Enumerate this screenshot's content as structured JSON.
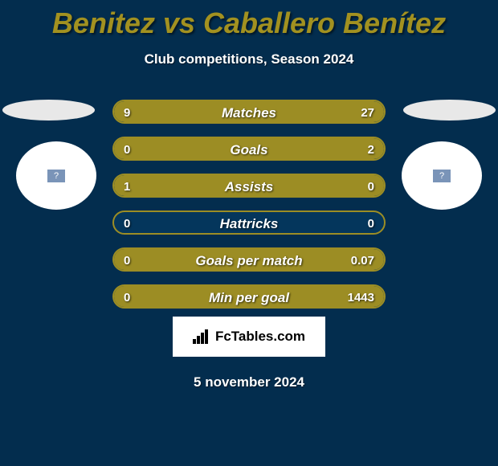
{
  "colors": {
    "bg": "#032d4e",
    "title": "#a29120",
    "text": "#ffffff",
    "ellipse": "#e8e8e8",
    "avatar_bg": "#ffffff",
    "avatar_inner_bg": "#7a94b8",
    "avatar_inner_text": "#ffffff",
    "bar_track": "#04365c",
    "bar_border": "#9c8d24",
    "bar_fill": "#9c8d24",
    "footer_bg": "#ffffff",
    "footer_text": "#000000"
  },
  "title": {
    "text": "Benitez vs Caballero Benítez",
    "fontsize": 36
  },
  "subtitle": "Club competitions, Season 2024",
  "avatar_glyph": "?",
  "stats": [
    {
      "label": "Matches",
      "left_val": "9",
      "right_val": "27",
      "left_pct": 25,
      "right_pct": 75
    },
    {
      "label": "Goals",
      "left_val": "0",
      "right_val": "2",
      "left_pct": 0,
      "right_pct": 100
    },
    {
      "label": "Assists",
      "left_val": "1",
      "right_val": "0",
      "left_pct": 100,
      "right_pct": 0
    },
    {
      "label": "Hattricks",
      "left_val": "0",
      "right_val": "0",
      "left_pct": 0,
      "right_pct": 0
    },
    {
      "label": "Goals per match",
      "left_val": "0",
      "right_val": "0.07",
      "left_pct": 0,
      "right_pct": 100
    },
    {
      "label": "Min per goal",
      "left_val": "0",
      "right_val": "1443",
      "left_pct": 0,
      "right_pct": 100
    }
  ],
  "bar_style": {
    "height": 30,
    "gap": 16,
    "radius": 15,
    "border_width": 2,
    "label_fontsize": 17,
    "value_fontsize": 15
  },
  "footer": {
    "logo_text": "FcTables.com",
    "date": "5 november 2024"
  }
}
